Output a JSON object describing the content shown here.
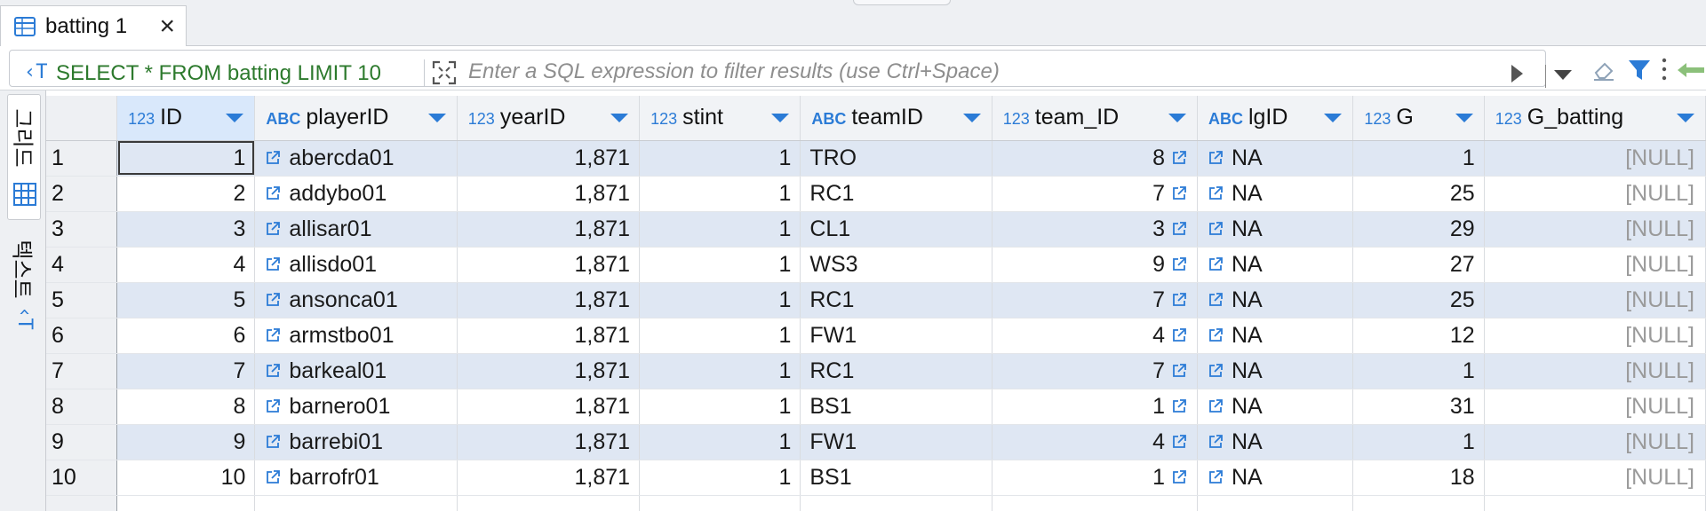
{
  "tab": {
    "label": "batting 1",
    "close": "×"
  },
  "filter": {
    "sql_icon": "‹T",
    "query": "SELECT * FROM batting LIMIT 10",
    "placeholder": "Enter a SQL expression to filter results (use Ctrl+Space)"
  },
  "side_tabs": {
    "grid": "그리드",
    "text": "텍스트",
    "text_icon": "‹T"
  },
  "columns": [
    {
      "type": "123",
      "name": "ID"
    },
    {
      "type": "ABC",
      "name": "playerID"
    },
    {
      "type": "123",
      "name": "yearID"
    },
    {
      "type": "123",
      "name": "stint"
    },
    {
      "type": "ABC",
      "name": "teamID"
    },
    {
      "type": "123",
      "name": "team_ID"
    },
    {
      "type": "ABC",
      "name": "lgID"
    },
    {
      "type": "123",
      "name": "G"
    },
    {
      "type": "123",
      "name": "G_batting"
    }
  ],
  "rows": [
    {
      "n": "1",
      "ID": "1",
      "playerID": "abercda01",
      "yearID": "1,871",
      "stint": "1",
      "teamID": "TRO",
      "team_ID": "8",
      "lgID": "NA",
      "G": "1",
      "G_batting": "[NULL]"
    },
    {
      "n": "2",
      "ID": "2",
      "playerID": "addybo01",
      "yearID": "1,871",
      "stint": "1",
      "teamID": "RC1",
      "team_ID": "7",
      "lgID": "NA",
      "G": "25",
      "G_batting": "[NULL]"
    },
    {
      "n": "3",
      "ID": "3",
      "playerID": "allisar01",
      "yearID": "1,871",
      "stint": "1",
      "teamID": "CL1",
      "team_ID": "3",
      "lgID": "NA",
      "G": "29",
      "G_batting": "[NULL]"
    },
    {
      "n": "4",
      "ID": "4",
      "playerID": "allisdo01",
      "yearID": "1,871",
      "stint": "1",
      "teamID": "WS3",
      "team_ID": "9",
      "lgID": "NA",
      "G": "27",
      "G_batting": "[NULL]"
    },
    {
      "n": "5",
      "ID": "5",
      "playerID": "ansonca01",
      "yearID": "1,871",
      "stint": "1",
      "teamID": "RC1",
      "team_ID": "7",
      "lgID": "NA",
      "G": "25",
      "G_batting": "[NULL]"
    },
    {
      "n": "6",
      "ID": "6",
      "playerID": "armstbo01",
      "yearID": "1,871",
      "stint": "1",
      "teamID": "FW1",
      "team_ID": "4",
      "lgID": "NA",
      "G": "12",
      "G_batting": "[NULL]"
    },
    {
      "n": "7",
      "ID": "7",
      "playerID": "barkeal01",
      "yearID": "1,871",
      "stint": "1",
      "teamID": "RC1",
      "team_ID": "7",
      "lgID": "NA",
      "G": "1",
      "G_batting": "[NULL]"
    },
    {
      "n": "8",
      "ID": "8",
      "playerID": "barnero01",
      "yearID": "1,871",
      "stint": "1",
      "teamID": "BS1",
      "team_ID": "1",
      "lgID": "NA",
      "G": "31",
      "G_batting": "[NULL]"
    },
    {
      "n": "9",
      "ID": "9",
      "playerID": "barrebi01",
      "yearID": "1,871",
      "stint": "1",
      "teamID": "FW1",
      "team_ID": "4",
      "lgID": "NA",
      "G": "1",
      "G_batting": "[NULL]"
    },
    {
      "n": "10",
      "ID": "10",
      "playerID": "barrofr01",
      "yearID": "1,871",
      "stint": "1",
      "teamID": "BS1",
      "team_ID": "1",
      "lgID": "NA",
      "G": "18",
      "G_batting": "[NULL]"
    }
  ],
  "colors": {
    "accent": "#2b7bd6",
    "sql_text": "#2d7a2d",
    "row_alt": "#dfe7f3"
  }
}
